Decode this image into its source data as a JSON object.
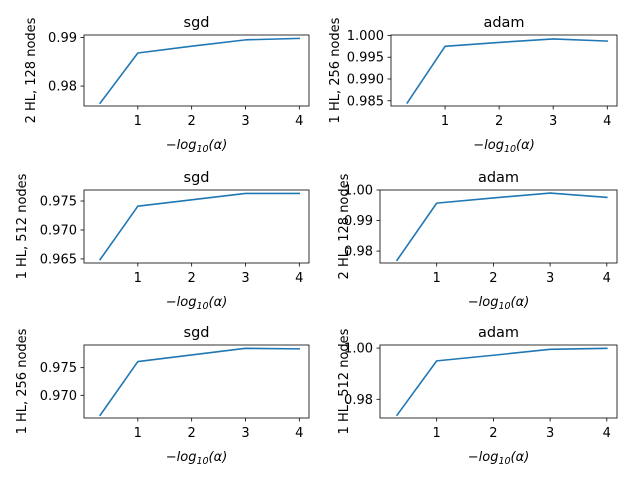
{
  "chart_data": [
    {
      "type": "line",
      "title": "sgd",
      "ylabel": "2 HL, 128 nodes",
      "xlabel": "−log10(α)",
      "x": [
        0.3,
        1,
        2,
        3,
        4
      ],
      "series": [
        {
          "values": [
            0.9765,
            0.9868,
            0.9882,
            0.9895,
            0.9898
          ]
        }
      ],
      "xticks": [
        1,
        2,
        3,
        4
      ],
      "yticks": [
        0.98,
        0.99
      ],
      "ytick_labels": [
        "0.98",
        "0.99"
      ],
      "xlim": [
        0.0,
        4.18
      ],
      "ylim": [
        0.9759,
        0.9905
      ],
      "color": "#1f77b4"
    },
    {
      "type": "line",
      "title": "adam",
      "ylabel": "1 HL, 256 nodes",
      "xlabel": "−log10(α)",
      "x": [
        0.3,
        1,
        2,
        3,
        4
      ],
      "series": [
        {
          "values": [
            0.9845,
            0.9975,
            0.9984,
            0.9992,
            0.9987
          ]
        }
      ],
      "xticks": [
        1,
        2,
        3,
        4
      ],
      "yticks": [
        0.985,
        0.99,
        0.995,
        1.0
      ],
      "ytick_labels": [
        "0.985",
        "0.990",
        "0.995",
        "1.000"
      ],
      "xlim": [
        0.0,
        4.18
      ],
      "ylim": [
        0.9838,
        1.0001
      ],
      "color": "#1f77b4"
    },
    {
      "type": "line",
      "title": "sgd",
      "ylabel": "1 HL, 512 nodes",
      "xlabel": "−log10(α)",
      "x": [
        0.3,
        1,
        2,
        3,
        4
      ],
      "series": [
        {
          "values": [
            0.9649,
            0.9741,
            0.9752,
            0.9763,
            0.9763
          ]
        }
      ],
      "xticks": [
        1,
        2,
        3,
        4
      ],
      "yticks": [
        0.965,
        0.97,
        0.975
      ],
      "ytick_labels": [
        "0.965",
        "0.970",
        "0.975"
      ],
      "xlim": [
        0.0,
        4.18
      ],
      "ylim": [
        0.9643,
        0.9769
      ],
      "color": "#1f77b4"
    },
    {
      "type": "line",
      "title": "adam",
      "ylabel": "2 HL, 128 nodes",
      "xlabel": "−log10(α)",
      "x": [
        0.3,
        1,
        2,
        3,
        4
      ],
      "series": [
        {
          "values": [
            0.977,
            0.9957,
            0.9974,
            0.999,
            0.9976
          ]
        }
      ],
      "xticks": [
        1,
        2,
        3,
        4
      ],
      "yticks": [
        0.98,
        0.99,
        1.0
      ],
      "ytick_labels": [
        "0.98",
        "0.99",
        "1.00"
      ],
      "xlim": [
        0.0,
        4.18
      ],
      "ylim": [
        0.9761,
        1.0
      ],
      "color": "#1f77b4"
    },
    {
      "type": "line",
      "title": "sgd",
      "ylabel": "1 HL, 256 nodes",
      "xlabel": "−log10(α)",
      "x": [
        0.3,
        1,
        2,
        3,
        4
      ],
      "series": [
        {
          "values": [
            0.9664,
            0.9761,
            0.9773,
            0.9785,
            0.9784
          ]
        }
      ],
      "xticks": [
        1,
        2,
        3,
        4
      ],
      "yticks": [
        0.97,
        0.975
      ],
      "ytick_labels": [
        "0.970",
        "0.975"
      ],
      "xlim": [
        0.0,
        4.18
      ],
      "ylim": [
        0.9659,
        0.9791
      ],
      "color": "#1f77b4"
    },
    {
      "type": "line",
      "title": "adam",
      "ylabel": "1 HL, 512 nodes",
      "xlabel": "−log10(α)",
      "x": [
        0.3,
        1,
        2,
        3,
        4
      ],
      "series": [
        {
          "values": [
            0.9738,
            0.995,
            0.9972,
            0.9995,
            0.9999
          ]
        }
      ],
      "xticks": [
        1,
        2,
        3,
        4
      ],
      "yticks": [
        0.98,
        1.0
      ],
      "ytick_labels": [
        "0.98",
        "1.00"
      ],
      "xlim": [
        0.0,
        4.18
      ],
      "ylim": [
        0.9727,
        1.0012
      ],
      "color": "#1f77b4"
    }
  ]
}
